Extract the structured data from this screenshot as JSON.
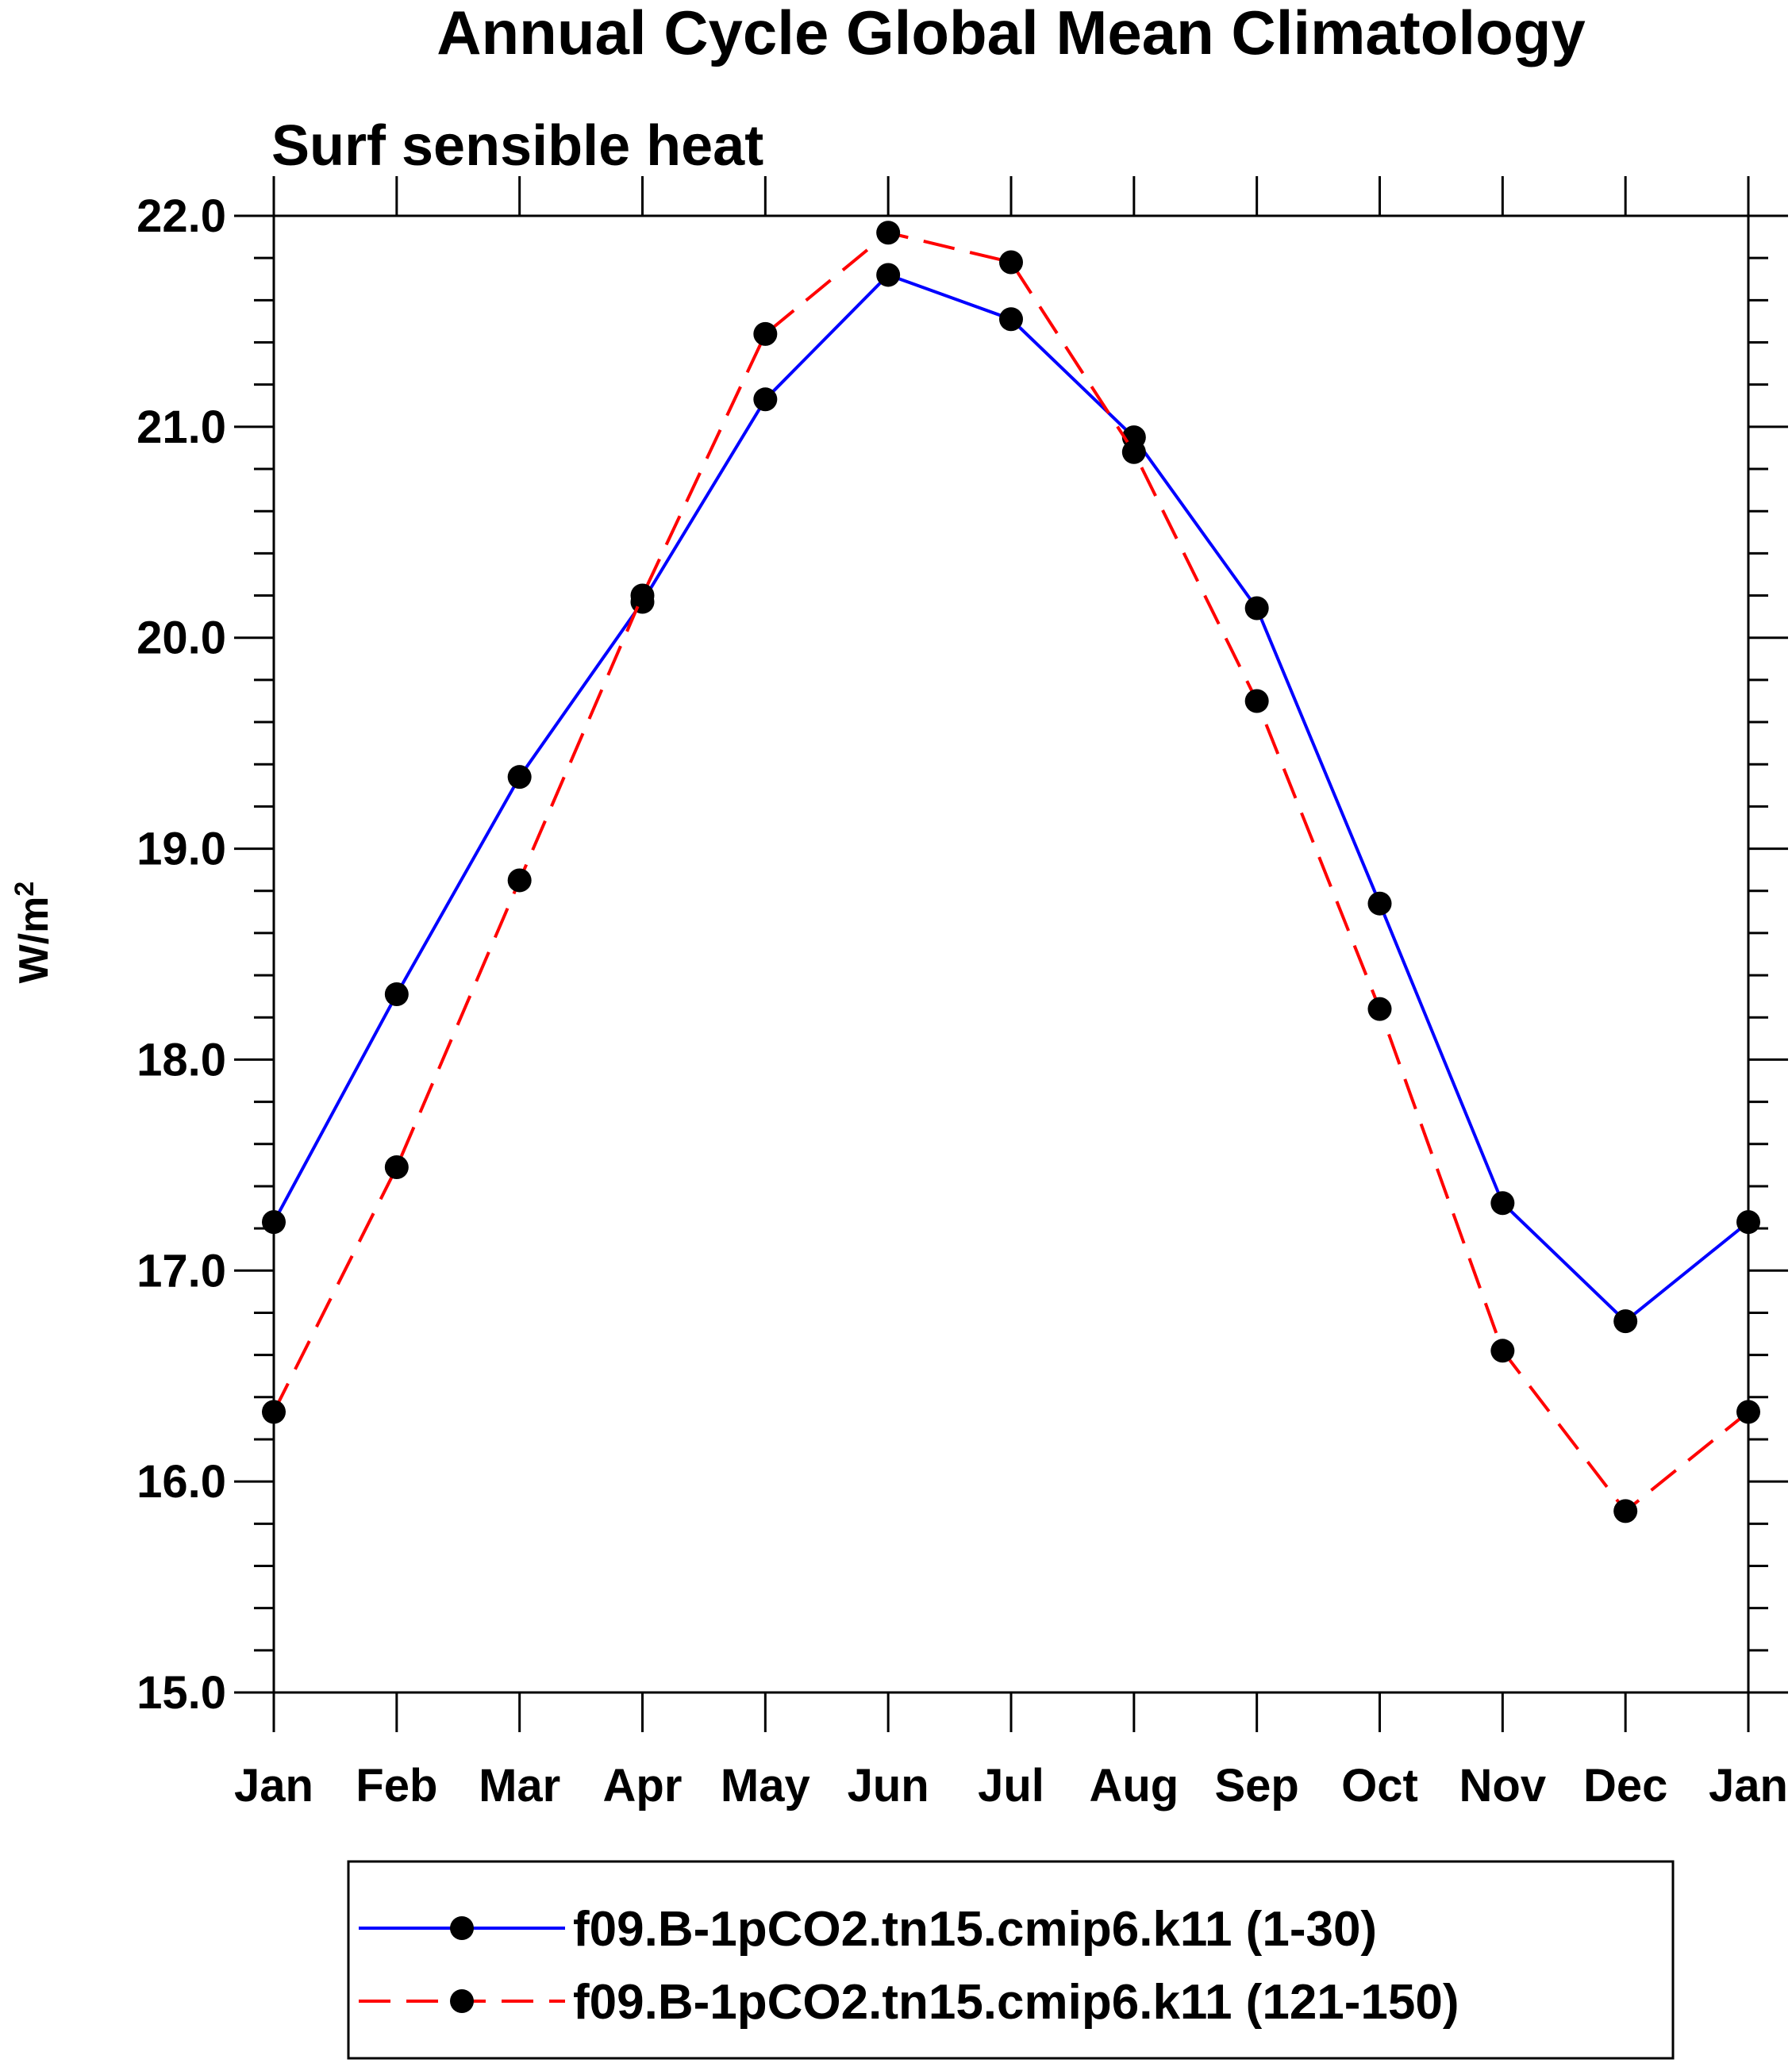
{
  "chart_data": {
    "type": "line",
    "title": "Annual Cycle Global Mean Climatology",
    "subtitle": "Surf sensible heat",
    "ylabel_base": "W/m",
    "ylabel_sup": "2",
    "xlabel": "",
    "categories": [
      "Jan",
      "Feb",
      "Mar",
      "Apr",
      "May",
      "Jun",
      "Jul",
      "Aug",
      "Sep",
      "Oct",
      "Nov",
      "Dec",
      "Jan"
    ],
    "ylim": [
      15.0,
      22.0
    ],
    "yticks": [
      "15.0",
      "16.0",
      "17.0",
      "18.0",
      "19.0",
      "20.0",
      "21.0",
      "22.0"
    ],
    "grid": false,
    "legend_position": "bottom",
    "series": [
      {
        "name": "f09.B-1pCO2.tn15.cmip6.k11 (1-30)",
        "color": "#0000ff",
        "line_style": "solid",
        "marker": "filled-circle",
        "values": [
          17.23,
          18.31,
          19.34,
          20.17,
          21.13,
          21.72,
          21.51,
          20.95,
          20.14,
          18.74,
          17.32,
          16.76,
          17.23
        ]
      },
      {
        "name": "f09.B-1pCO2.tn15.cmip6.k11 (121-150)",
        "color": "#ff0000",
        "line_style": "dashed",
        "marker": "filled-circle",
        "values": [
          16.33,
          17.49,
          18.85,
          20.2,
          21.44,
          21.92,
          21.78,
          20.88,
          19.7,
          18.24,
          16.62,
          15.86,
          16.33
        ]
      }
    ]
  }
}
